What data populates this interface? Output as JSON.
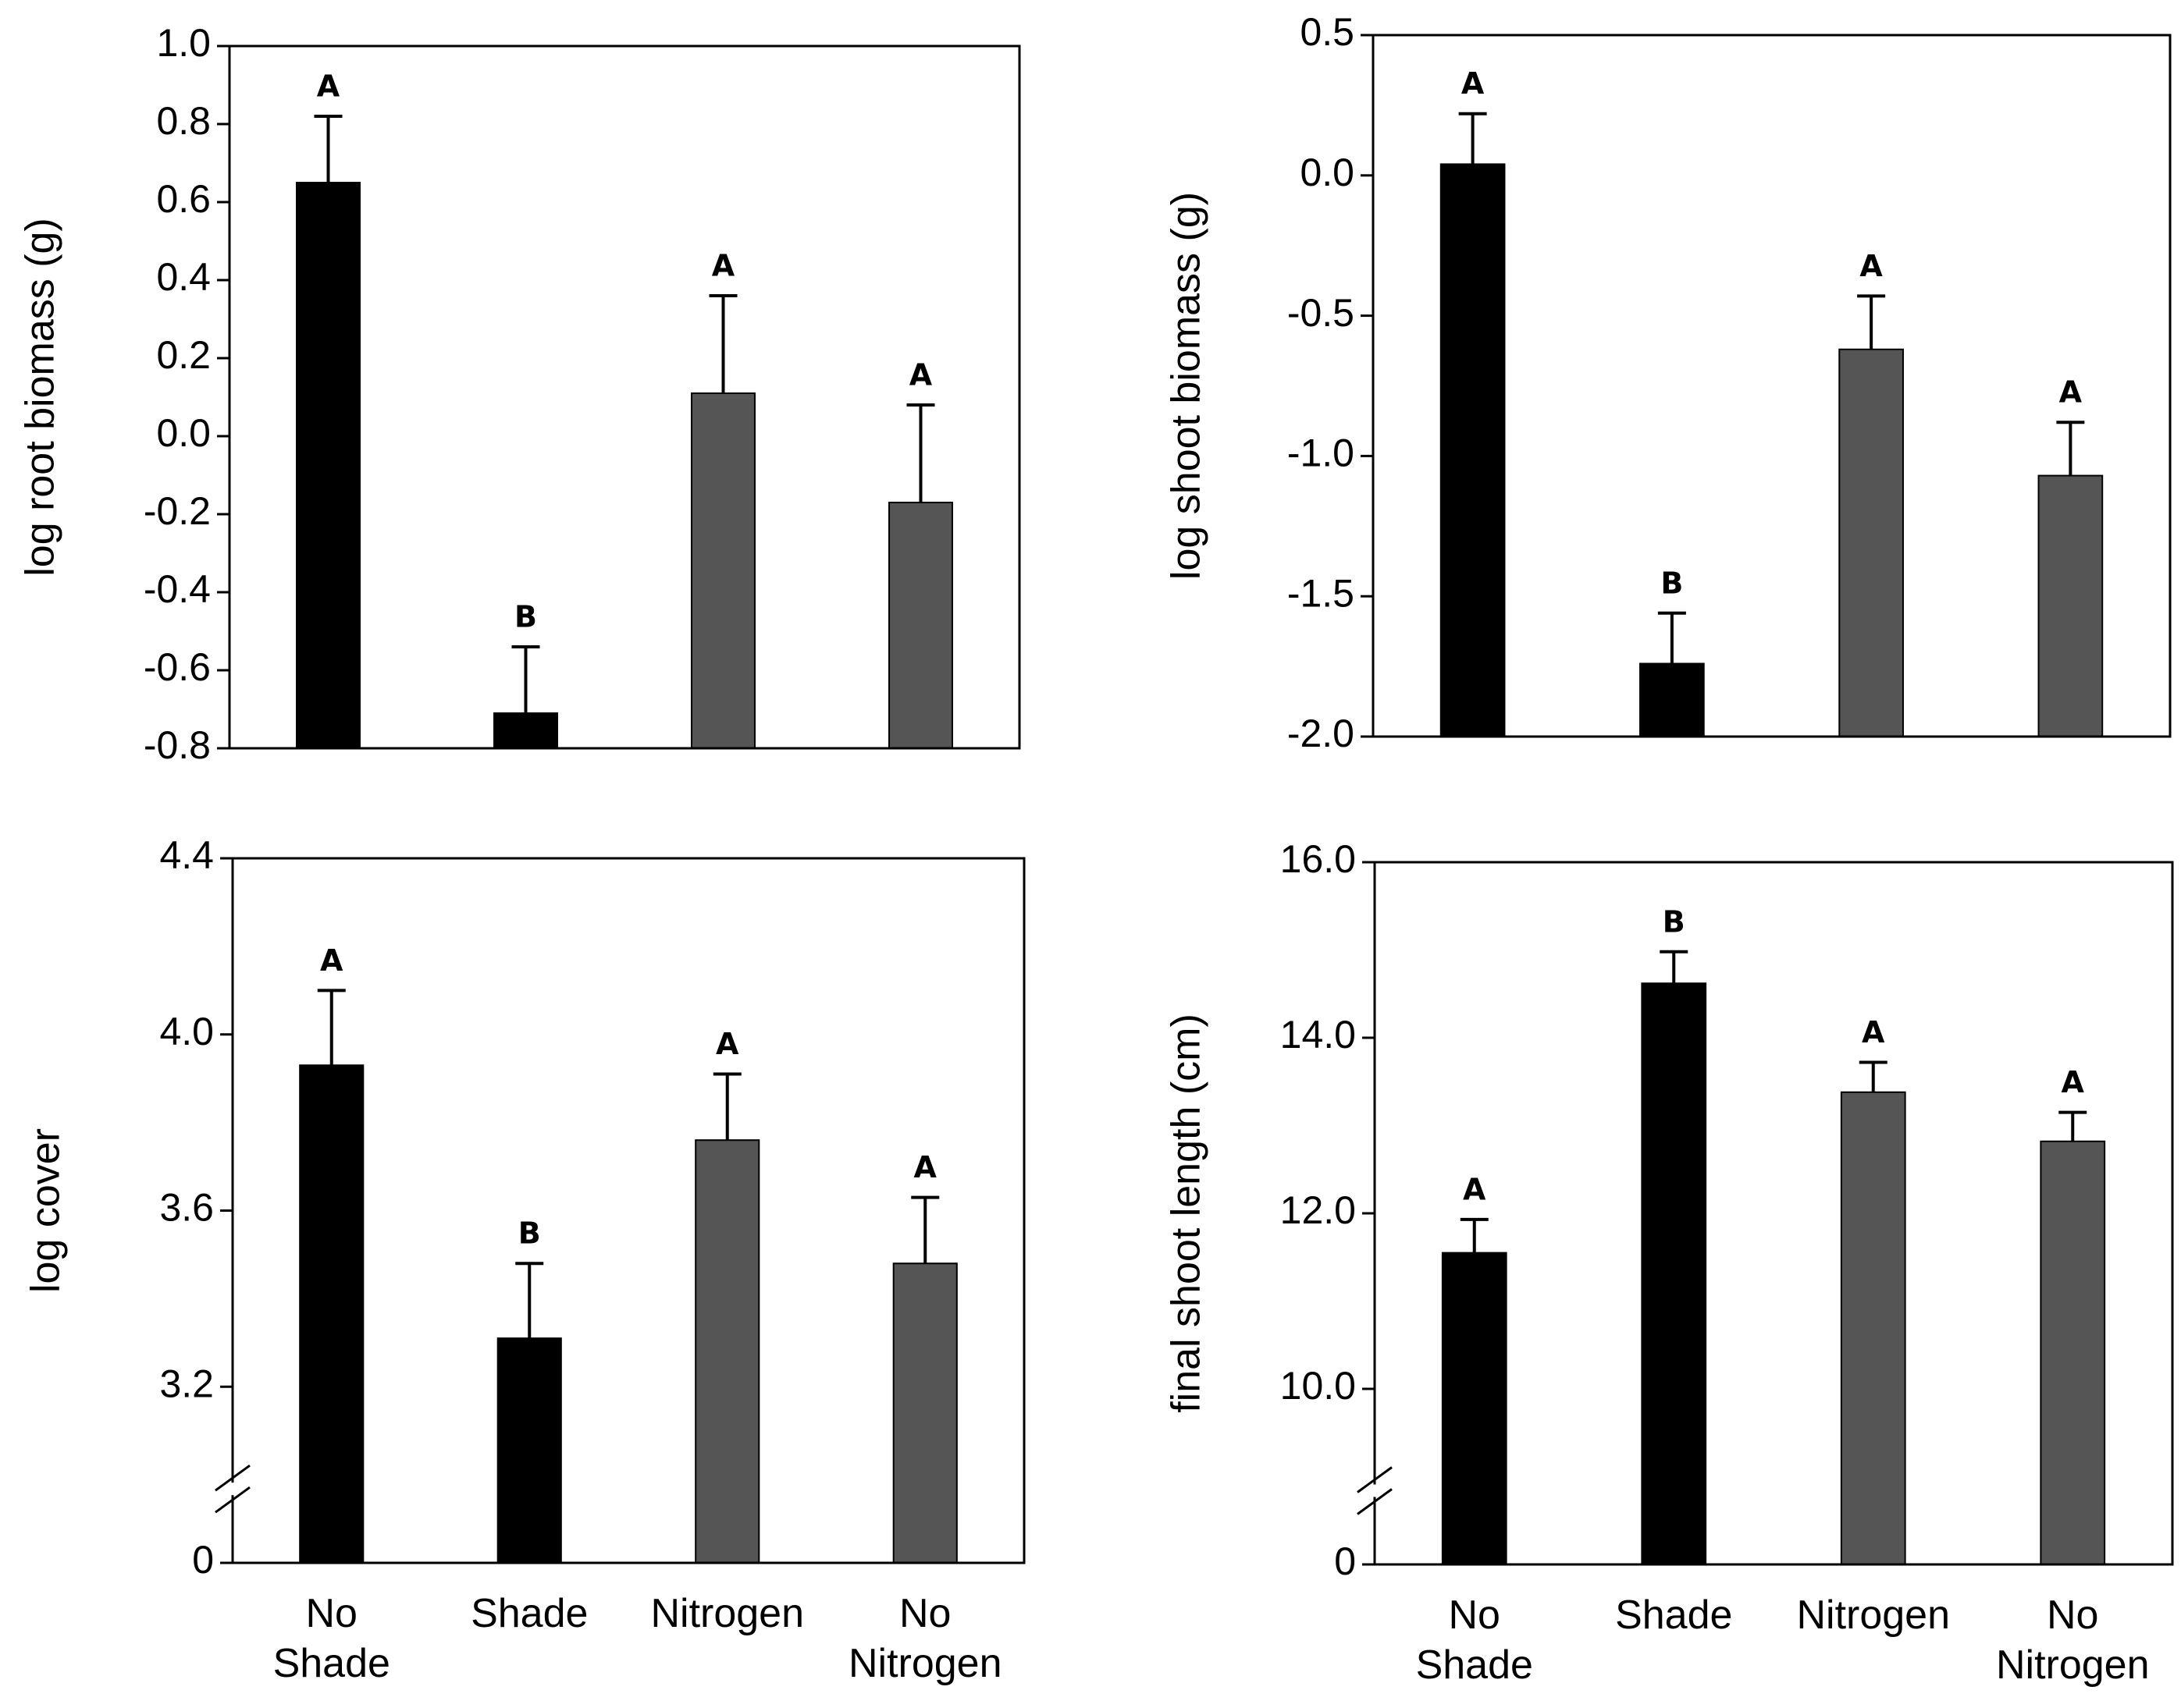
{
  "chart_data": [
    {
      "type": "bar",
      "ylabel": "log root biomass (g)",
      "values": [
        0.65,
        -0.71,
        0.11,
        -0.17
      ],
      "errors": [
        0.17,
        0.17,
        0.25,
        0.25
      ],
      "letters": [
        "A",
        "B",
        "A",
        "A"
      ],
      "colors": [
        "#000000",
        "#000000",
        "#555555",
        "#555555"
      ],
      "ylim": [
        -0.8,
        1.0
      ],
      "yticks": [
        -0.8,
        -0.6,
        -0.4,
        -0.2,
        {
          "value": 0,
          "label": "0.0"
        },
        0.2,
        0.4,
        0.6,
        0.8,
        {
          "value": 1,
          "label": "1.0"
        }
      ]
    },
    {
      "type": "bar",
      "ylabel": "log shoot biomass (g)",
      "values": [
        0.04,
        -1.74,
        -0.62,
        -1.07
      ],
      "errors": [
        0.18,
        0.18,
        0.19,
        0.19
      ],
      "letters": [
        "A",
        "B",
        "A",
        "A"
      ],
      "colors": [
        "#000000",
        "#000000",
        "#555555",
        "#555555"
      ],
      "ylim": [
        -2.0,
        0.5
      ],
      "yticks": [
        {
          "value": -2,
          "label": "-2.0"
        },
        -1.5,
        {
          "value": -1,
          "label": "-1.0"
        },
        -0.5,
        {
          "value": 0,
          "label": "0.0"
        },
        0.5
      ]
    },
    {
      "type": "bar",
      "ylabel": "log cover",
      "categories": [
        "No Shade",
        "Shade",
        "Nitrogen",
        "No Nitrogen"
      ],
      "values": [
        3.93,
        3.31,
        3.76,
        3.48
      ],
      "errors": [
        0.17,
        0.17,
        0.15,
        0.15
      ],
      "letters": [
        "A",
        "B",
        "A",
        "A"
      ],
      "colors": [
        "#000000",
        "#000000",
        "#555555",
        "#555555"
      ],
      "ylim": [
        0,
        4.4
      ],
      "ybreak": true,
      "yticks": [
        0,
        3.2,
        3.6,
        {
          "value": 4,
          "label": "4.0"
        },
        4.4
      ]
    },
    {
      "type": "bar",
      "ylabel": "final shoot length (cm)",
      "categories": [
        "No Shade",
        "Shade",
        "Nitrogen",
        "No Nitrogen"
      ],
      "values": [
        11.55,
        14.62,
        13.38,
        12.82
      ],
      "errors": [
        0.38,
        0.36,
        0.34,
        0.33
      ],
      "letters": [
        "A",
        "B",
        "A",
        "A"
      ],
      "colors": [
        "#000000",
        "#000000",
        "#555555",
        "#555555"
      ],
      "ylim": [
        0,
        16
      ],
      "ybreak": true,
      "yticks": [
        0,
        {
          "value": 10,
          "label": "10.0"
        },
        {
          "value": 12,
          "label": "12.0"
        },
        {
          "value": 14,
          "label": "14.0"
        },
        {
          "value": 16,
          "label": "16.0"
        }
      ]
    }
  ]
}
